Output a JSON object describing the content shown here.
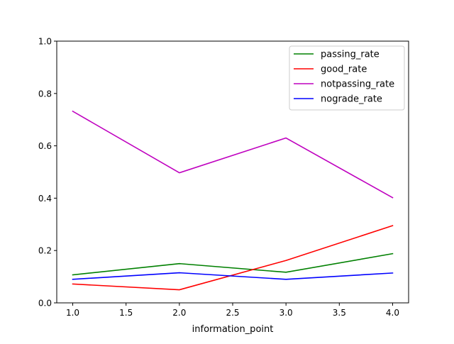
{
  "chart_data": {
    "type": "line",
    "title": "",
    "xlabel": "information_point",
    "ylabel": "",
    "xlim": [
      0.85,
      4.15
    ],
    "ylim": [
      0.0,
      1.0
    ],
    "x_ticks": [
      1.0,
      1.5,
      2.0,
      2.5,
      3.0,
      3.5,
      4.0
    ],
    "x_tick_labels": [
      "1.0",
      "1.5",
      "2.0",
      "2.5",
      "3.0",
      "3.5",
      "4.0"
    ],
    "y_ticks": [
      0.0,
      0.2,
      0.4,
      0.6,
      0.8,
      1.0
    ],
    "y_tick_labels": [
      "0.0",
      "0.2",
      "0.4",
      "0.6",
      "0.8",
      "1.0"
    ],
    "grid": false,
    "legend_position": "top-right",
    "x": [
      1.0,
      2.0,
      3.0,
      4.0
    ],
    "series": [
      {
        "name": "passing_rate",
        "color": "#008000",
        "values": [
          0.107,
          0.15,
          0.117,
          0.188
        ]
      },
      {
        "name": "good_rate",
        "color": "#ff0000",
        "values": [
          0.072,
          0.05,
          0.162,
          0.295
        ]
      },
      {
        "name": "notpassing_rate",
        "color": "#bf00bf",
        "values": [
          0.732,
          0.497,
          0.63,
          0.402
        ]
      },
      {
        "name": "nograde_rate",
        "color": "#0000ff",
        "values": [
          0.09,
          0.115,
          0.09,
          0.114
        ]
      }
    ]
  }
}
